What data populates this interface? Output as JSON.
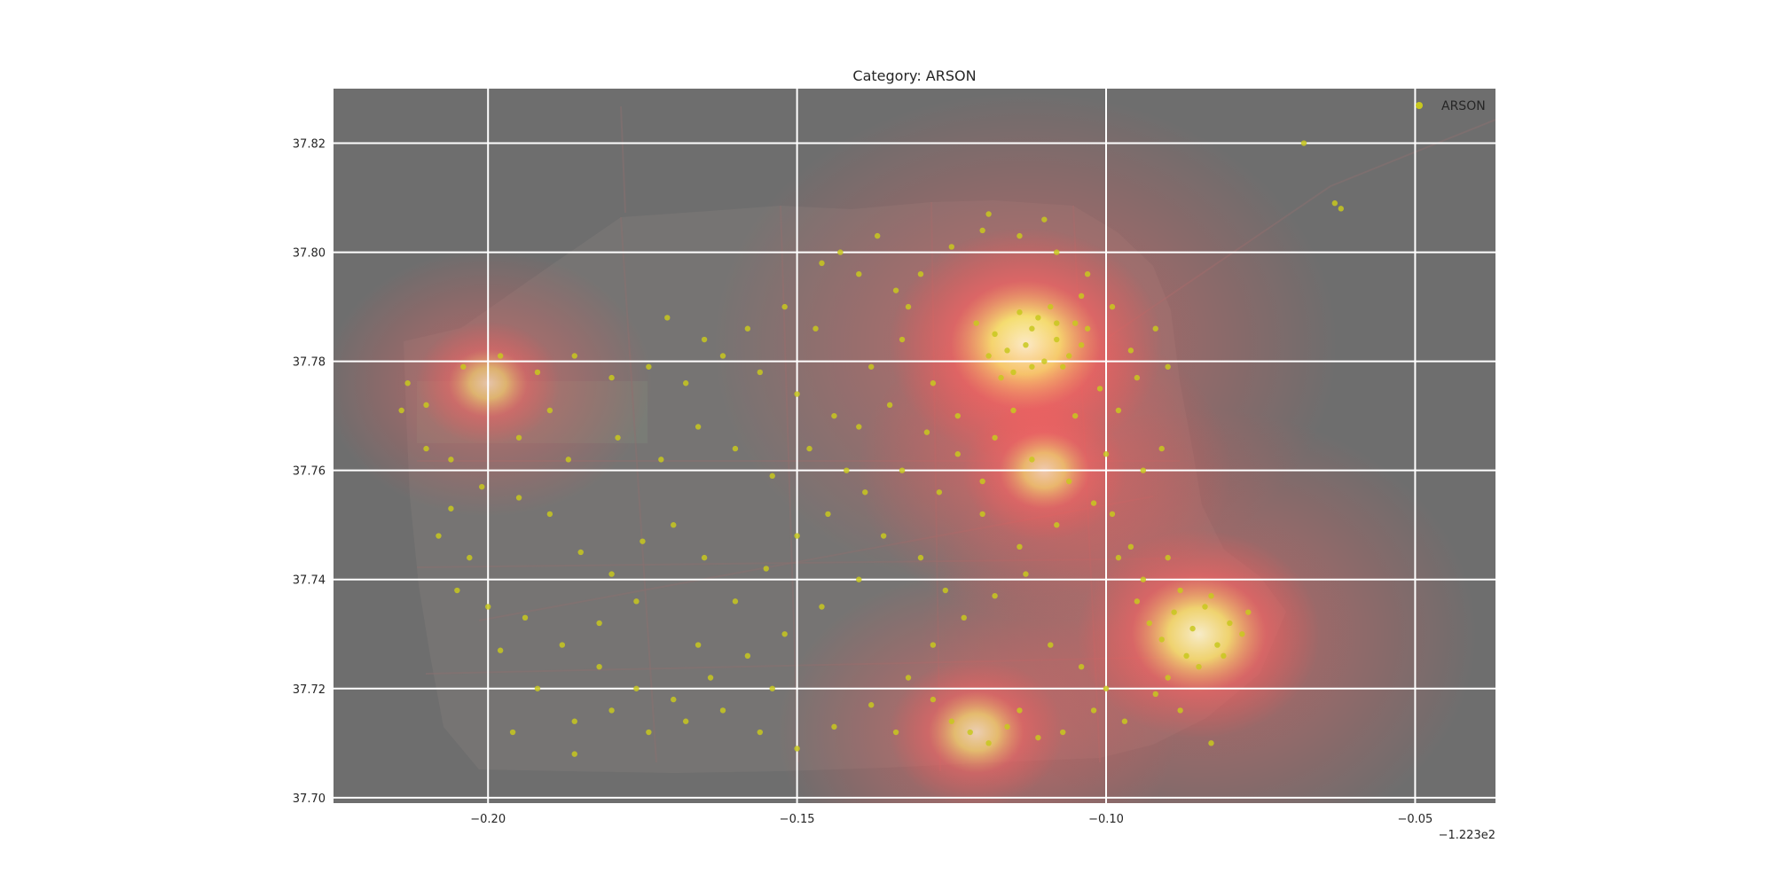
{
  "chart_data": {
    "type": "scatter",
    "title": "Category: ARSON",
    "xlabel": "",
    "ylabel": "",
    "x_offset_label": "−1.223e2",
    "xlim": [
      -0.225,
      -0.037
    ],
    "ylim": [
      37.699,
      37.83
    ],
    "x_ticks": [
      -0.2,
      -0.15,
      -0.1,
      -0.05
    ],
    "x_tick_labels": [
      "−0.20",
      "−0.15",
      "−0.10",
      "−0.05"
    ],
    "y_ticks": [
      37.7,
      37.72,
      37.74,
      37.76,
      37.78,
      37.8,
      37.82
    ],
    "y_tick_labels": [
      "37.70",
      "37.72",
      "37.74",
      "37.76",
      "37.78",
      "37.80",
      "37.82"
    ],
    "grid": true,
    "legend_position": "top-right",
    "background_description": "grey-tinted street map of San Francisco with a red-to-yellow kernel density heat overlay",
    "colors": {
      "points": "#c8c81e",
      "axes_bg": "#6e6e6e",
      "grid": "#ffffff",
      "heat_low": "#ff5a5a",
      "heat_high": "#ffffc8"
    },
    "hotspots": [
      {
        "x": -0.113,
        "y": 37.783,
        "level": 1.0
      },
      {
        "x": -0.085,
        "y": 37.73,
        "level": 0.85
      },
      {
        "x": -0.121,
        "y": 37.712,
        "level": 0.5
      },
      {
        "x": -0.11,
        "y": 37.76,
        "level": 0.45
      },
      {
        "x": -0.2,
        "y": 37.776,
        "level": 0.35
      }
    ],
    "series": [
      {
        "name": "ARSON",
        "points": [
          [
            -0.112,
            37.786
          ],
          [
            -0.108,
            37.784
          ],
          [
            -0.116,
            37.782
          ],
          [
            -0.11,
            37.78
          ],
          [
            -0.105,
            37.787
          ],
          [
            -0.118,
            37.785
          ],
          [
            -0.114,
            37.789
          ],
          [
            -0.107,
            37.779
          ],
          [
            -0.113,
            37.783
          ],
          [
            -0.119,
            37.781
          ],
          [
            -0.104,
            37.783
          ],
          [
            -0.111,
            37.788
          ],
          [
            -0.115,
            37.778
          ],
          [
            -0.109,
            37.79
          ],
          [
            -0.121,
            37.787
          ],
          [
            -0.106,
            37.781
          ],
          [
            -0.117,
            37.777
          ],
          [
            -0.103,
            37.786
          ],
          [
            -0.112,
            37.779
          ],
          [
            -0.108,
            37.787
          ],
          [
            -0.086,
            37.731
          ],
          [
            -0.082,
            37.728
          ],
          [
            -0.089,
            37.734
          ],
          [
            -0.084,
            37.735
          ],
          [
            -0.08,
            37.732
          ],
          [
            -0.087,
            37.726
          ],
          [
            -0.091,
            37.729
          ],
          [
            -0.083,
            37.737
          ],
          [
            -0.078,
            37.73
          ],
          [
            -0.088,
            37.738
          ],
          [
            -0.085,
            37.724
          ],
          [
            -0.09,
            37.722
          ],
          [
            -0.081,
            37.726
          ],
          [
            -0.093,
            37.732
          ],
          [
            -0.077,
            37.734
          ],
          [
            -0.122,
            37.712
          ],
          [
            -0.119,
            37.71
          ],
          [
            -0.125,
            37.714
          ],
          [
            -0.116,
            37.713
          ],
          [
            -0.111,
            37.711
          ],
          [
            -0.13,
            37.796
          ],
          [
            -0.125,
            37.801
          ],
          [
            -0.12,
            37.804
          ],
          [
            -0.137,
            37.803
          ],
          [
            -0.143,
            37.8
          ],
          [
            -0.146,
            37.798
          ],
          [
            -0.132,
            37.79
          ],
          [
            -0.128,
            37.776
          ],
          [
            -0.135,
            37.772
          ],
          [
            -0.14,
            37.768
          ],
          [
            -0.124,
            37.77
          ],
          [
            -0.118,
            37.766
          ],
          [
            -0.112,
            37.762
          ],
          [
            -0.106,
            37.758
          ],
          [
            -0.1,
            37.763
          ],
          [
            -0.098,
            37.771
          ],
          [
            -0.102,
            37.754
          ],
          [
            -0.108,
            37.75
          ],
          [
            -0.114,
            37.746
          ],
          [
            -0.12,
            37.752
          ],
          [
            -0.127,
            37.756
          ],
          [
            -0.133,
            37.76
          ],
          [
            -0.139,
            37.756
          ],
          [
            -0.145,
            37.752
          ],
          [
            -0.15,
            37.748
          ],
          [
            -0.155,
            37.742
          ],
          [
            -0.16,
            37.736
          ],
          [
            -0.165,
            37.744
          ],
          [
            -0.17,
            37.75
          ],
          [
            -0.175,
            37.747
          ],
          [
            -0.18,
            37.741
          ],
          [
            -0.185,
            37.745
          ],
          [
            -0.19,
            37.752
          ],
          [
            -0.195,
            37.755
          ],
          [
            -0.201,
            37.757
          ],
          [
            -0.206,
            37.762
          ],
          [
            -0.21,
            37.772
          ],
          [
            -0.213,
            37.776
          ],
          [
            -0.204,
            37.779
          ],
          [
            -0.198,
            37.781
          ],
          [
            -0.192,
            37.778
          ],
          [
            -0.186,
            37.781
          ],
          [
            -0.18,
            37.777
          ],
          [
            -0.174,
            37.779
          ],
          [
            -0.168,
            37.776
          ],
          [
            -0.162,
            37.781
          ],
          [
            -0.156,
            37.778
          ],
          [
            -0.15,
            37.774
          ],
          [
            -0.144,
            37.77
          ],
          [
            -0.138,
            37.779
          ],
          [
            -0.133,
            37.784
          ],
          [
            -0.147,
            37.786
          ],
          [
            -0.152,
            37.79
          ],
          [
            -0.158,
            37.786
          ],
          [
            -0.165,
            37.784
          ],
          [
            -0.171,
            37.788
          ],
          [
            -0.19,
            37.771
          ],
          [
            -0.195,
            37.766
          ],
          [
            -0.187,
            37.762
          ],
          [
            -0.179,
            37.766
          ],
          [
            -0.172,
            37.762
          ],
          [
            -0.166,
            37.768
          ],
          [
            -0.16,
            37.764
          ],
          [
            -0.154,
            37.759
          ],
          [
            -0.148,
            37.764
          ],
          [
            -0.142,
            37.76
          ],
          [
            -0.136,
            37.748
          ],
          [
            -0.13,
            37.744
          ],
          [
            -0.126,
            37.738
          ],
          [
            -0.14,
            37.74
          ],
          [
            -0.146,
            37.735
          ],
          [
            -0.152,
            37.73
          ],
          [
            -0.158,
            37.726
          ],
          [
            -0.164,
            37.722
          ],
          [
            -0.17,
            37.718
          ],
          [
            -0.176,
            37.72
          ],
          [
            -0.182,
            37.724
          ],
          [
            -0.188,
            37.728
          ],
          [
            -0.194,
            37.733
          ],
          [
            -0.2,
            37.735
          ],
          [
            -0.205,
            37.738
          ],
          [
            -0.198,
            37.727
          ],
          [
            -0.192,
            37.72
          ],
          [
            -0.186,
            37.714
          ],
          [
            -0.18,
            37.716
          ],
          [
            -0.174,
            37.712
          ],
          [
            -0.168,
            37.714
          ],
          [
            -0.162,
            37.716
          ],
          [
            -0.156,
            37.712
          ],
          [
            -0.15,
            37.709
          ],
          [
            -0.144,
            37.713
          ],
          [
            -0.138,
            37.717
          ],
          [
            -0.132,
            37.722
          ],
          [
            -0.128,
            37.728
          ],
          [
            -0.123,
            37.733
          ],
          [
            -0.118,
            37.737
          ],
          [
            -0.113,
            37.741
          ],
          [
            -0.109,
            37.728
          ],
          [
            -0.104,
            37.724
          ],
          [
            -0.1,
            37.72
          ],
          [
            -0.097,
            37.714
          ],
          [
            -0.094,
            37.74
          ],
          [
            -0.096,
            37.746
          ],
          [
            -0.099,
            37.752
          ],
          [
            -0.094,
            37.76
          ],
          [
            -0.091,
            37.764
          ],
          [
            -0.096,
            37.782
          ],
          [
            -0.099,
            37.79
          ],
          [
            -0.103,
            37.796
          ],
          [
            -0.108,
            37.8
          ],
          [
            -0.114,
            37.803
          ],
          [
            -0.119,
            37.807
          ],
          [
            -0.11,
            37.806
          ],
          [
            -0.104,
            37.792
          ],
          [
            -0.095,
            37.777
          ],
          [
            -0.092,
            37.786
          ],
          [
            -0.09,
            37.779
          ],
          [
            -0.101,
            37.775
          ],
          [
            -0.105,
            37.77
          ],
          [
            -0.115,
            37.771
          ],
          [
            -0.12,
            37.758
          ],
          [
            -0.124,
            37.763
          ],
          [
            -0.129,
            37.767
          ],
          [
            -0.134,
            37.793
          ],
          [
            -0.14,
            37.796
          ],
          [
            -0.062,
            37.808
          ],
          [
            -0.063,
            37.809
          ],
          [
            -0.068,
            37.82
          ],
          [
            -0.083,
            37.71
          ],
          [
            -0.088,
            37.716
          ],
          [
            -0.092,
            37.719
          ],
          [
            -0.095,
            37.736
          ],
          [
            -0.09,
            37.744
          ],
          [
            -0.098,
            37.744
          ],
          [
            -0.128,
            37.718
          ],
          [
            -0.134,
            37.712
          ],
          [
            -0.114,
            37.716
          ],
          [
            -0.107,
            37.712
          ],
          [
            -0.102,
            37.716
          ],
          [
            -0.176,
            37.736
          ],
          [
            -0.182,
            37.732
          ],
          [
            -0.21,
            37.764
          ],
          [
            -0.214,
            37.771
          ],
          [
            -0.208,
            37.748
          ],
          [
            -0.206,
            37.753
          ],
          [
            -0.203,
            37.744
          ],
          [
            -0.196,
            37.712
          ],
          [
            -0.186,
            37.708
          ],
          [
            -0.166,
            37.728
          ],
          [
            -0.154,
            37.72
          ]
        ]
      }
    ]
  }
}
